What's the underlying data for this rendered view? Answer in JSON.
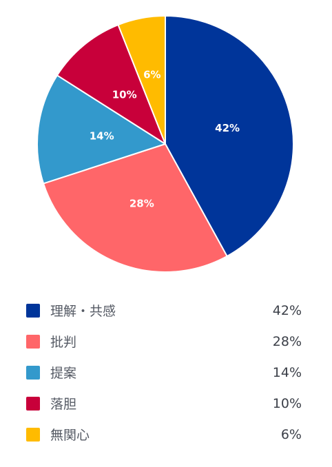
{
  "chart_data": {
    "type": "pie",
    "title": "",
    "categories": [
      "理解・共感",
      "批判",
      "提案",
      "落胆",
      "無関心"
    ],
    "values": [
      42,
      28,
      14,
      10,
      6
    ],
    "slice_labels": [
      "42%",
      "28%",
      "14%",
      "10%",
      "6%"
    ],
    "legend_values": [
      "42%",
      "28%",
      "14%",
      "10%",
      "6%"
    ],
    "colors": [
      "#00359a",
      "#ff6669",
      "#3399cc",
      "#c8003a",
      "#ffbb00"
    ],
    "unit": "%",
    "start_angle_deg": 0,
    "direction": "clockwise",
    "legend_placement": "bottom"
  }
}
